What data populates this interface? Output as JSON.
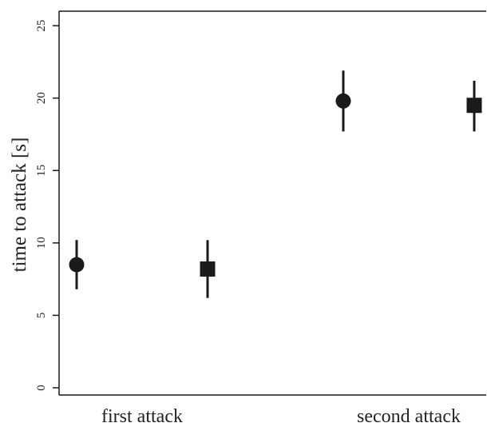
{
  "chart_data": {
    "type": "scatter",
    "title": "",
    "xlabel": "",
    "ylabel": "time to attack [s]",
    "categories": [
      "first attack",
      "second attack"
    ],
    "ylim": [
      -0.5,
      26
    ],
    "yticks": [
      0,
      5,
      10,
      15,
      20,
      25
    ],
    "grid": false,
    "legend": "none",
    "colors": {
      "marker": "#1a1a1a",
      "axis": "#1a1a1a"
    },
    "series": [
      {
        "marker": "circle",
        "points": [
          {
            "category": "first attack",
            "y": 8.5,
            "lower": 6.8,
            "upper": 10.2
          },
          {
            "category": "second attack",
            "y": 19.8,
            "lower": 17.7,
            "upper": 21.9
          }
        ]
      },
      {
        "marker": "square",
        "points": [
          {
            "category": "first attack",
            "y": 8.2,
            "lower": 6.2,
            "upper": 10.2
          },
          {
            "category": "second attack",
            "y": 19.5,
            "lower": 17.7,
            "upper": 21.2
          }
        ]
      }
    ]
  }
}
